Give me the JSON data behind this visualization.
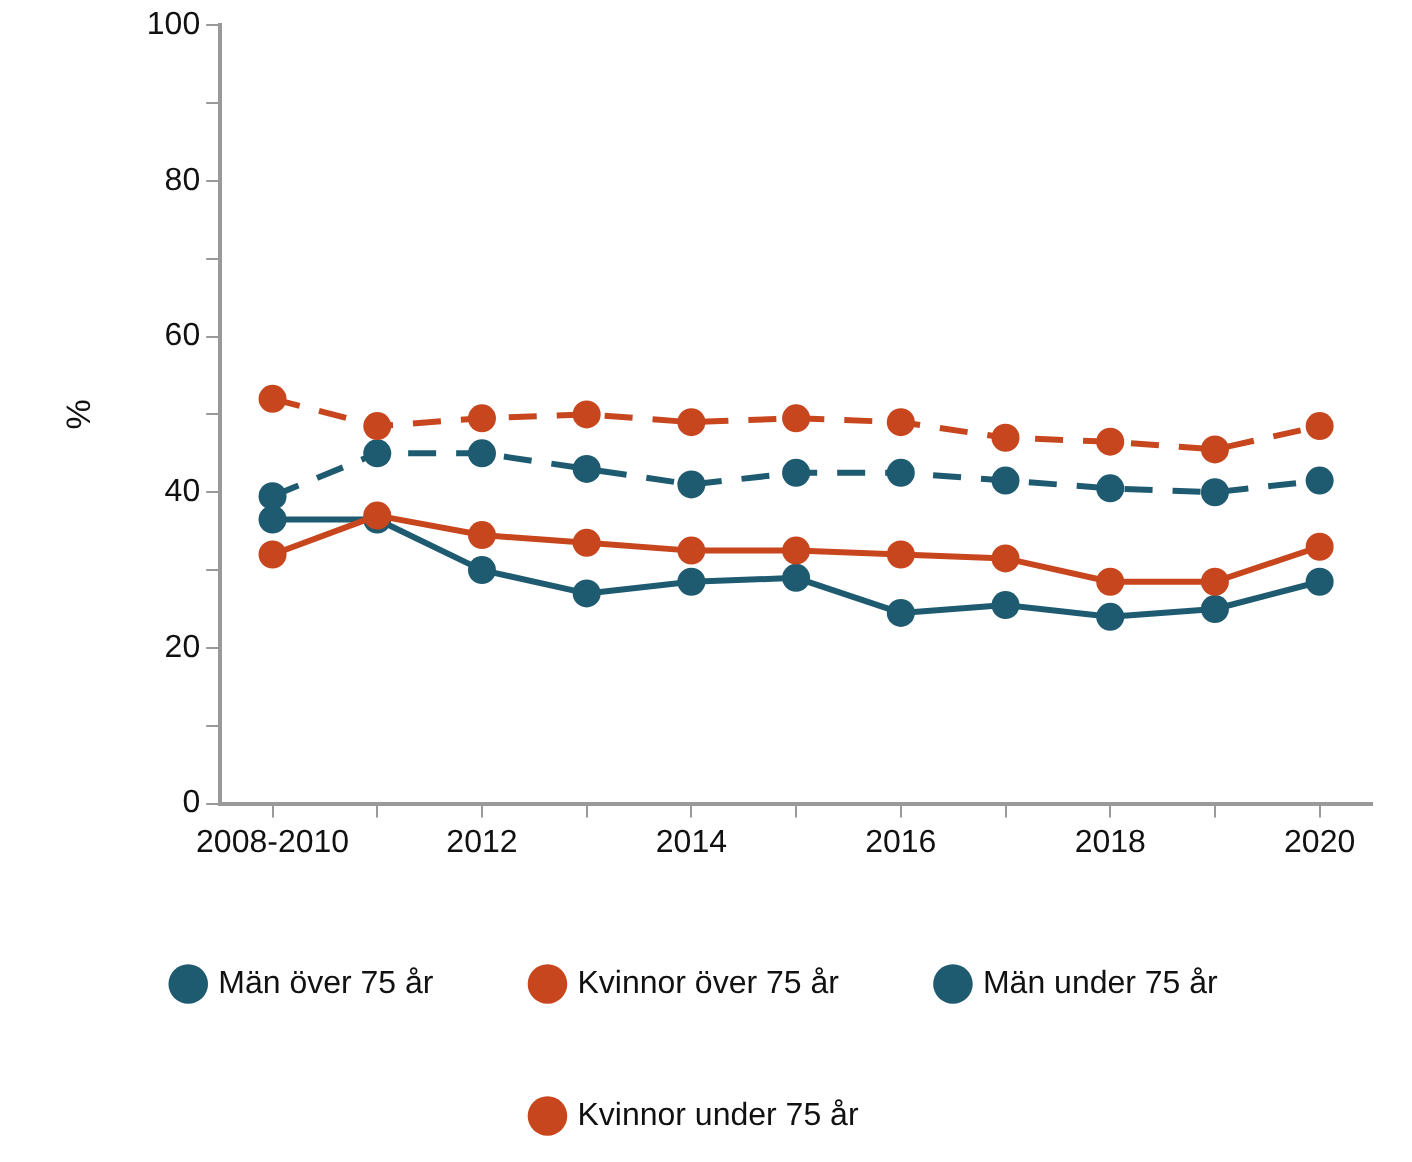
{
  "chart_data": {
    "type": "line",
    "ylabel": "%",
    "categories": [
      "2008-2010",
      null,
      "2012",
      null,
      "2014",
      null,
      "2016",
      null,
      "2018",
      null,
      "2020"
    ],
    "series": [
      {
        "name": "Män över 75 år",
        "color": "#1f5b70",
        "line_style": "solid",
        "values": [
          36.5,
          36.5,
          30,
          27,
          28.5,
          29,
          24.5,
          25.5,
          24,
          25,
          28.5
        ]
      },
      {
        "name": "Kvinnor över 75 år",
        "color": "#c8461e",
        "line_style": "solid",
        "values": [
          32,
          37,
          34.5,
          33.5,
          32.5,
          32.5,
          32,
          31.5,
          28.5,
          28.5,
          33
        ]
      },
      {
        "name": "Män under 75 år",
        "color": "#1f5b70",
        "line_style": "dashed",
        "values": [
          39.5,
          45,
          45,
          43,
          41,
          42.5,
          42.5,
          41.5,
          40.5,
          40,
          41.5
        ]
      },
      {
        "name": "Kvinnor under 75 år",
        "color": "#c8461e",
        "line_style": "dashed",
        "values": [
          52,
          48.5,
          49.5,
          50,
          49,
          49.5,
          49,
          47,
          46.5,
          45.5,
          48.5
        ]
      }
    ],
    "ylim": [
      0,
      100
    ],
    "yticks": [
      0,
      {
        "value": 10,
        "label": null
      },
      20,
      {
        "value": 30,
        "label": null
      },
      40,
      {
        "value": 50,
        "label": null
      },
      60,
      {
        "value": 70,
        "label": null
      },
      80,
      {
        "value": 90,
        "label": null
      },
      100
    ],
    "grid": false,
    "legend": "bottom",
    "marker": "circle"
  }
}
